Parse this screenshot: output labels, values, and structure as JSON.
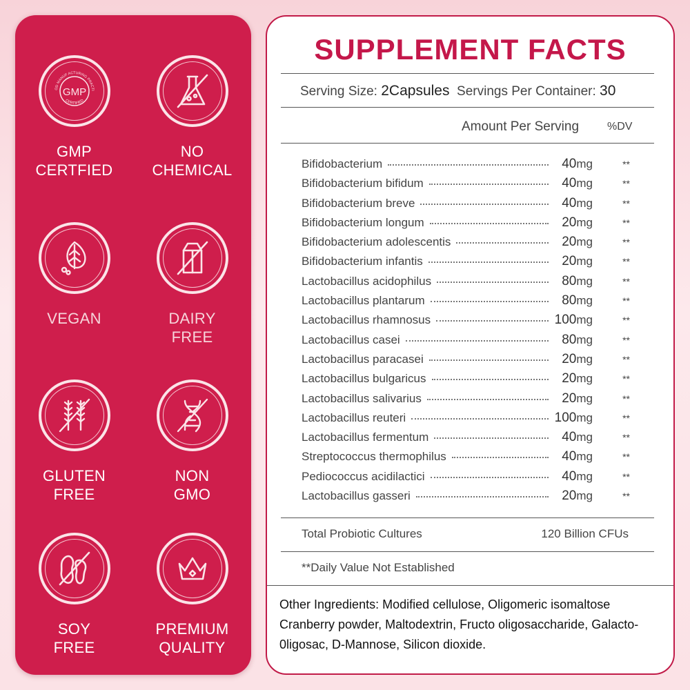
{
  "badges": [
    {
      "icon": "gmp-seal-icon",
      "lines": [
        "GMP",
        "CERTFIED"
      ],
      "seal_text": "GMP",
      "seal_ring_text": "GOOD MANUF ACTURING PRACTICE",
      "seal_bottom_text": "CERTIFIED"
    },
    {
      "icon": "flask-icon",
      "lines": [
        "NO",
        "CHEMICAL"
      ]
    },
    {
      "icon": "vegan-leaf-icon",
      "lines": [
        "VEGAN"
      ]
    },
    {
      "icon": "milk-carton-icon",
      "lines": [
        "DAIRY",
        "FREE"
      ]
    },
    {
      "icon": "wheat-icon",
      "lines": [
        "GLUTEN",
        "FREE"
      ]
    },
    {
      "icon": "dna-icon",
      "lines": [
        "NON",
        "GMO"
      ]
    },
    {
      "icon": "soybean-icon",
      "lines": [
        "SOY",
        "FREE"
      ]
    },
    {
      "icon": "crown-icon",
      "lines": [
        "PREMIUM",
        "QUALITY"
      ]
    }
  ],
  "facts": {
    "title": "SUPPLEMENT FACTS",
    "serving_size_label": "Serving Size:",
    "serving_size_value": "2Capsules",
    "servings_label": "Servings Per Container:",
    "servings_value": "30",
    "amount_header": "Amount Per Serving",
    "dv_header": "%DV",
    "ingredients": [
      {
        "name": "Bifidobacterium",
        "amount": "40",
        "unit": "mg",
        "dv": "**"
      },
      {
        "name": "Bifidobacterium bifidum",
        "amount": "40",
        "unit": "mg",
        "dv": "**"
      },
      {
        "name": "Bifidobacterium breve",
        "amount": "40",
        "unit": "mg",
        "dv": "**"
      },
      {
        "name": "Bifidobacterium longum",
        "amount": "20",
        "unit": "mg",
        "dv": "**"
      },
      {
        "name": "Bifidobacterium adolescentis",
        "amount": "20",
        "unit": "mg",
        "dv": "**"
      },
      {
        "name": "Bifidobacterium infantis",
        "amount": "20",
        "unit": "mg",
        "dv": "**"
      },
      {
        "name": "Lactobacillus acidophilus",
        "amount": "80",
        "unit": "mg",
        "dv": "**"
      },
      {
        "name": "Lactobacillus plantarum",
        "amount": "80",
        "unit": "mg",
        "dv": "**"
      },
      {
        "name": "Lactobacillus rhamnosus",
        "amount": "100",
        "unit": "mg",
        "dv": "**"
      },
      {
        "name": "Lactobacillus casei",
        "amount": "80",
        "unit": "mg",
        "dv": "**"
      },
      {
        "name": "Lactobacillus paracasei",
        "amount": "20",
        "unit": "mg",
        "dv": "**"
      },
      {
        "name": "Lactobacillus bulgaricus",
        "amount": "20",
        "unit": "mg",
        "dv": "**"
      },
      {
        "name": "Lactobacillus salivarius",
        "amount": "20",
        "unit": "mg",
        "dv": "**"
      },
      {
        "name": "Lactobacillus reuteri",
        "amount": "100",
        "unit": "mg",
        "dv": "**"
      },
      {
        "name": "Lactobacillus fermentum",
        "amount": "40",
        "unit": "mg",
        "dv": "**"
      },
      {
        "name": "Streptococcus thermophilus",
        "amount": "40",
        "unit": "mg",
        "dv": "**"
      },
      {
        "name": "Pediococcus acidilactici",
        "amount": "40",
        "unit": "mg",
        "dv": "**"
      },
      {
        "name": "Lactobacillus gasseri",
        "amount": "20",
        "unit": "mg",
        "dv": "**"
      }
    ],
    "total_label": "Total Probiotic Cultures",
    "total_value": "120 Billion CFUs",
    "dv_note": "**Daily Value Not Established",
    "other_ingredients": "Other Ingredients: Modified cellulose, Oligomeric isomaltose Cranberry powder, Maltodextrin, Fructo oligosaccharide, Galacto-0ligosac, D-Mannose, Silicon dioxide."
  },
  "colors": {
    "panel_red": "#cf1e4c",
    "title_red": "#c4174a",
    "background_pink": "#fde9ec"
  }
}
